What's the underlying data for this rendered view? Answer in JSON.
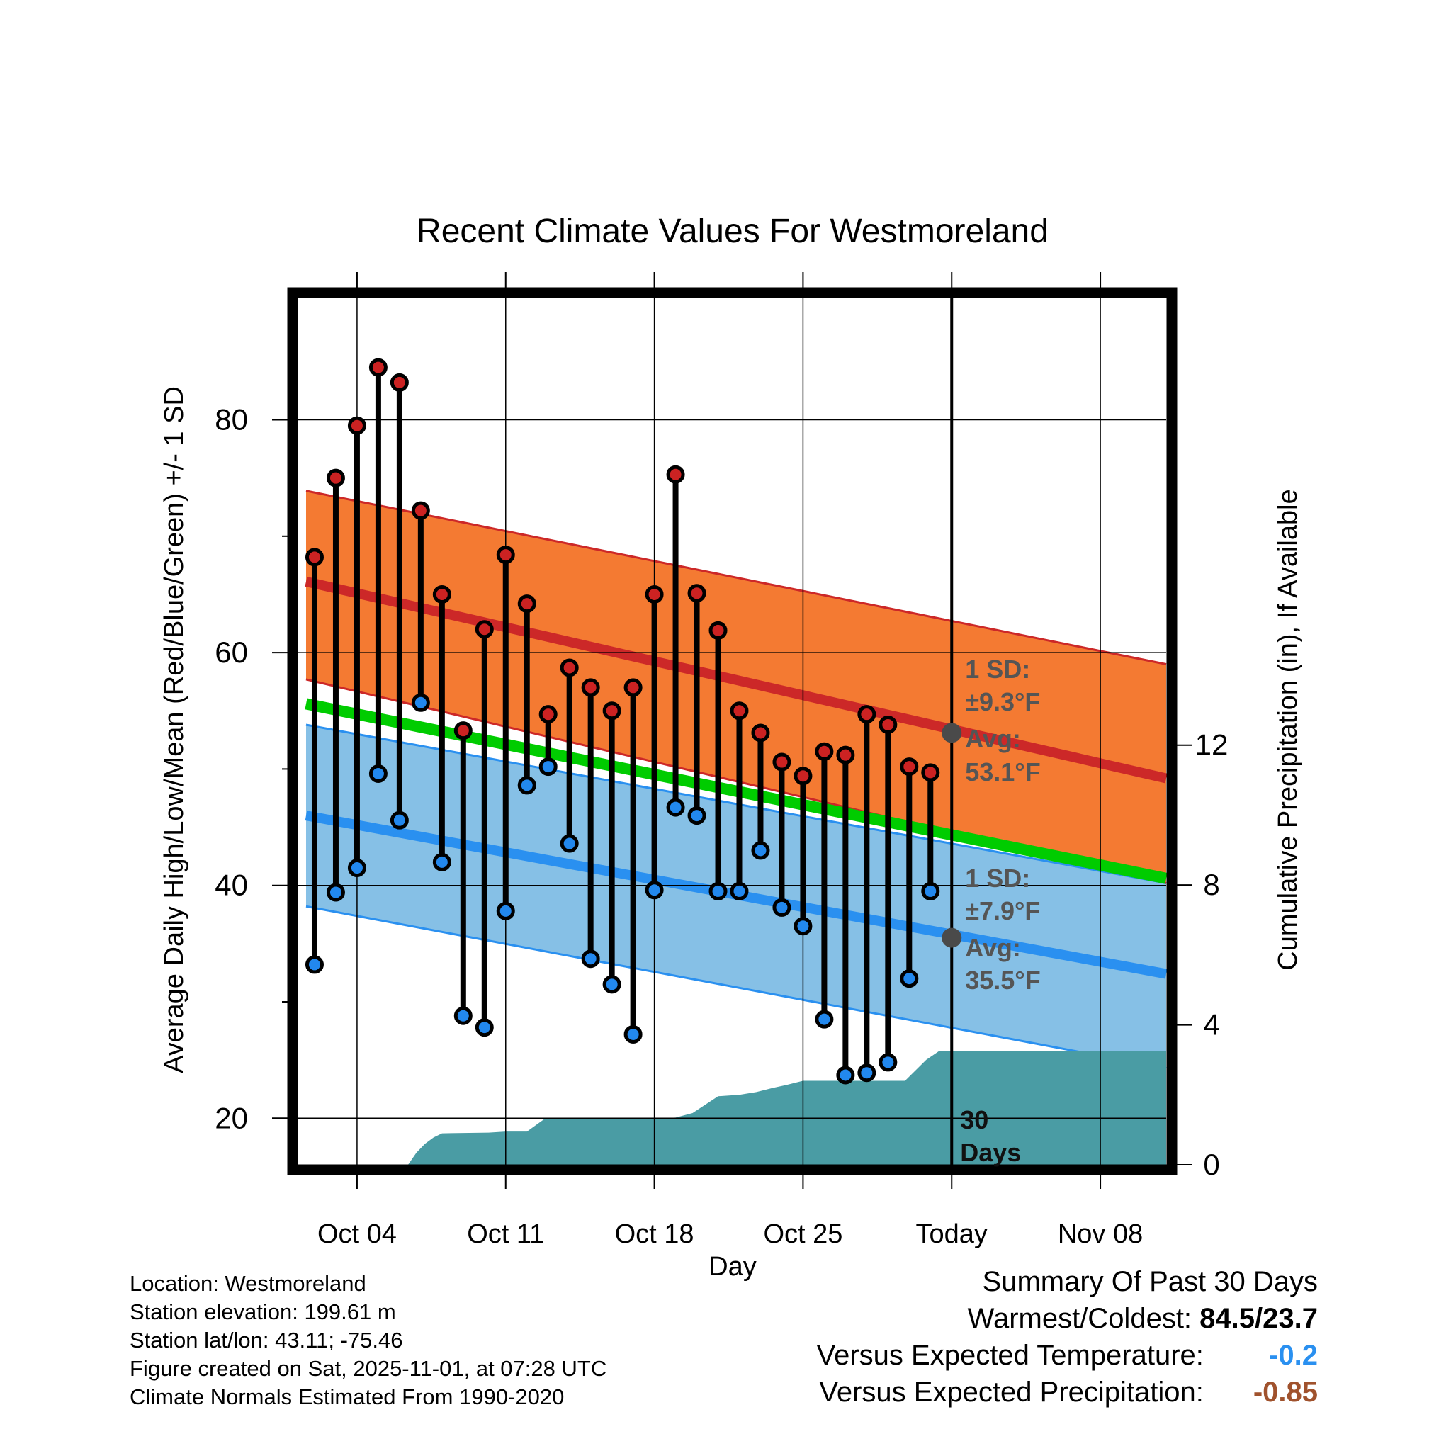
{
  "chart_data": {
    "type": "line",
    "title": "Recent Climate Values For Westmoreland",
    "xlabel": "Day",
    "ylabel_left": "Average Daily High/Low/Mean (Red/Blue/Green) +/- 1 SD",
    "ylabel_right": "Cumulative Precipitation (in), If Available",
    "x_ticks": [
      {
        "day": 3,
        "label": "Oct 04"
      },
      {
        "day": 10,
        "label": "Oct 11"
      },
      {
        "day": 17,
        "label": "Oct 18"
      },
      {
        "day": 24,
        "label": "Oct 25"
      },
      {
        "day": 31,
        "label": "Today"
      },
      {
        "day": 38,
        "label": "Nov 08"
      }
    ],
    "xlim": [
      0.2,
      41.1
    ],
    "y_left": {
      "lim": [
        16,
        90.5
      ],
      "ticks": [
        20,
        40,
        60,
        80
      ],
      "minor": [
        30,
        50,
        70
      ]
    },
    "y_right": {
      "lim": [
        0,
        24.8
      ],
      "ticks": [
        0,
        4,
        8,
        12
      ],
      "tick_labels": [
        "0",
        "4",
        "8",
        "12"
      ]
    },
    "normals": {
      "x": [
        0.6,
        41.1
      ],
      "high_avg": [
        66.1,
        49.2
      ],
      "high_upper": [
        73.9,
        59.0
      ],
      "high_lower": [
        57.7,
        40.2
      ],
      "mean": [
        55.6,
        40.6
      ],
      "low_avg": [
        46.0,
        32.4
      ],
      "low_upper": [
        53.8,
        40.2
      ],
      "low_lower": [
        38.2,
        24.3
      ]
    },
    "series": [
      {
        "name": "Daily High",
        "color": "#cc2222",
        "values": [
          68.2,
          75.0,
          79.5,
          84.5,
          83.2,
          72.2,
          65.0,
          53.3,
          62.0,
          68.4,
          64.2,
          54.7,
          58.7,
          57.0,
          55.0,
          57.0,
          65.0,
          75.3,
          65.1,
          61.9,
          55.0,
          53.1,
          50.6,
          49.4,
          51.5,
          51.2,
          54.7,
          53.8,
          50.2,
          49.7
        ]
      },
      {
        "name": "Daily Low",
        "color": "#2288ee",
        "values": [
          33.2,
          39.4,
          41.5,
          49.6,
          45.6,
          55.7,
          42.0,
          28.8,
          27.8,
          37.8,
          48.6,
          50.2,
          43.6,
          33.7,
          31.5,
          27.2,
          39.6,
          46.7,
          46.0,
          39.5,
          39.5,
          43.0,
          38.1,
          36.5,
          28.5,
          23.7,
          23.9,
          24.8,
          32.0,
          39.5
        ]
      }
    ],
    "precip": {
      "name": "Cumulative Precipitation",
      "x": [
        0.2,
        5.4,
        5.8,
        6.2,
        6.6,
        7.0,
        9.2,
        10.0,
        11.0,
        11.8,
        14.0,
        16.0,
        17.0,
        18.0,
        18.8,
        20.0,
        21.0,
        21.8,
        22.6,
        23.2,
        24.0,
        28.8,
        29.8,
        30.4,
        41.1
      ],
      "values": [
        0,
        0,
        0.35,
        0.6,
        0.78,
        0.9,
        0.92,
        0.95,
        0.95,
        1.3,
        1.3,
        1.3,
        1.32,
        1.35,
        1.48,
        1.96,
        2.0,
        2.08,
        2.2,
        2.28,
        2.4,
        2.4,
        3.0,
        3.25,
        3.25
      ]
    },
    "today_line": {
      "day": 31,
      "label_line1": "30",
      "label_line2": "Days"
    },
    "annotations": {
      "high": {
        "sd_label": "1 SD:",
        "sd_value": "±9.3°F",
        "avg_label": "Avg:",
        "avg_value": "53.1°F",
        "avg": 53.1
      },
      "low": {
        "sd_label": "1 SD:",
        "sd_value": "±7.9°F",
        "avg_label": "Avg:",
        "avg_value": "35.5°F",
        "avg": 35.5
      }
    },
    "colors": {
      "high_band": "#f47a32",
      "high_line": "#cc2828",
      "low_band": "#86c0e6",
      "low_line": "#2a90f0",
      "mean_line": "#00cc00",
      "precip": "#4a9ca4",
      "annotation": "#555555"
    }
  },
  "info": {
    "location": "Location: Westmoreland",
    "elevation": "Station elevation: 199.61 m",
    "latlon": "Station lat/lon: 43.11; -75.46",
    "created": "Figure created on Sat, 2025-11-01, at 07:28 UTC",
    "normals": "Climate Normals Estimated From 1990-2020"
  },
  "summary": {
    "heading": "Summary Of Past 30 Days",
    "warmest_label": "Warmest/Coldest:",
    "warmest_value": "84.5/23.7",
    "temp_label": "Versus Expected Temperature:",
    "temp_value": "-0.2",
    "temp_color": "#2a90f0",
    "precip_label": "Versus Expected Precipitation:",
    "precip_value": "-0.85",
    "precip_color": "#a0522d"
  }
}
